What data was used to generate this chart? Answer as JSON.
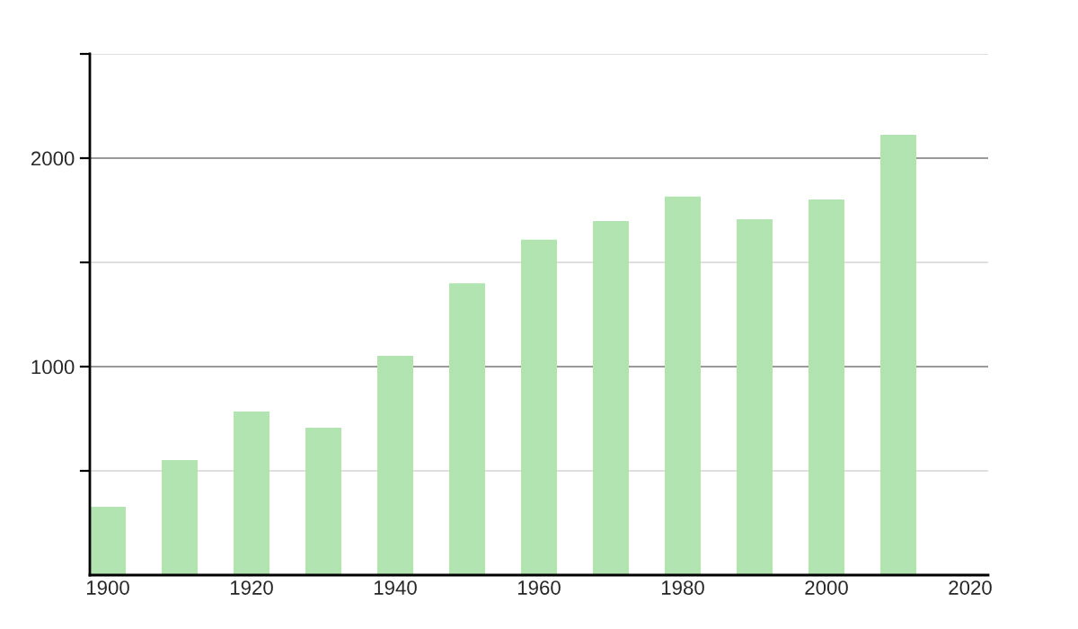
{
  "chart_data": {
    "type": "bar",
    "x": [
      1900,
      1910,
      1920,
      1930,
      1940,
      1950,
      1960,
      1970,
      1980,
      1990,
      2000,
      2010
    ],
    "values": [
      328,
      552,
      784,
      707,
      1052,
      1400,
      1609,
      1698,
      1816,
      1707,
      1802,
      2112
    ],
    "color": "#b1e4b1",
    "xlim": [
      1897.5,
      2022.5
    ],
    "xticks": [
      1900,
      1920,
      1940,
      1960,
      1980,
      2000,
      2020
    ],
    "ylim": [
      0,
      2500
    ],
    "yticks": [
      {
        "value": 500,
        "label": null
      },
      1000,
      {
        "value": 1500,
        "label": null
      },
      2000,
      {
        "value": 2500,
        "label": null
      }
    ],
    "grid": "y"
  }
}
